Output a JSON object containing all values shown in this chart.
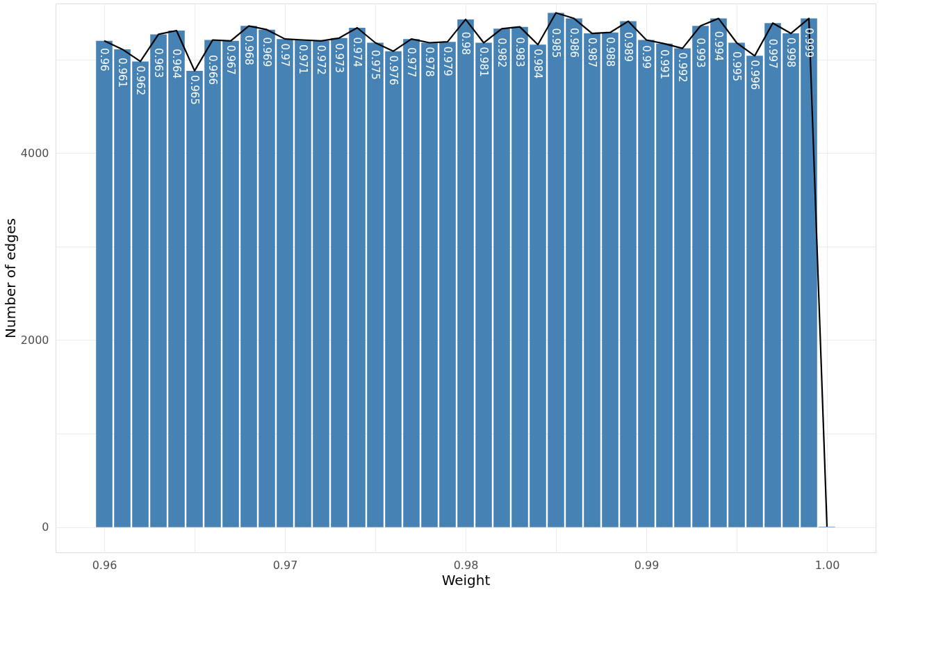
{
  "chart_data": {
    "type": "bar",
    "xlabel": "Weight",
    "ylabel": "Number of edges",
    "x": [
      0.96,
      0.961,
      0.962,
      0.963,
      0.964,
      0.965,
      0.966,
      0.967,
      0.968,
      0.969,
      0.97,
      0.971,
      0.972,
      0.973,
      0.974,
      0.975,
      0.976,
      0.977,
      0.978,
      0.979,
      0.98,
      0.981,
      0.982,
      0.983,
      0.984,
      0.985,
      0.986,
      0.987,
      0.988,
      0.989,
      0.99,
      0.991,
      0.992,
      0.993,
      0.994,
      0.995,
      0.996,
      0.997,
      0.998,
      0.999,
      1.0
    ],
    "series": [
      {
        "color": "#4682b4",
        "values": [
          5200,
          5110,
          4980,
          5270,
          5310,
          4880,
          5210,
          5200,
          5360,
          5320,
          5220,
          5210,
          5200,
          5230,
          5340,
          5180,
          5090,
          5220,
          5180,
          5190,
          5430,
          5180,
          5330,
          5350,
          5160,
          5500,
          5440,
          5280,
          5290,
          5410,
          5210,
          5170,
          5120,
          5360,
          5440,
          5180,
          5040,
          5390,
          5280,
          5440,
          5
        ]
      },
      {
        "type": "line",
        "color": "#000000",
        "values": [
          5200,
          5110,
          4980,
          5270,
          5310,
          4880,
          5210,
          5200,
          5360,
          5320,
          5220,
          5210,
          5200,
          5230,
          5340,
          5180,
          5090,
          5220,
          5180,
          5190,
          5430,
          5180,
          5330,
          5350,
          5160,
          5500,
          5440,
          5280,
          5290,
          5410,
          5210,
          5170,
          5120,
          5360,
          5440,
          5180,
          5040,
          5390,
          5280,
          5440,
          5
        ]
      }
    ],
    "annotations": [
      {
        "text": "0.96",
        "x": 0.96,
        "y": 5200
      },
      {
        "text": "0.961",
        "x": 0.961,
        "y": 5110
      },
      {
        "text": "0.962",
        "x": 0.962,
        "y": 4980
      },
      {
        "text": "0.963",
        "x": 0.963,
        "y": 5270
      },
      {
        "text": "0.964",
        "x": 0.964,
        "y": 5310
      },
      {
        "text": "0.965",
        "x": 0.965,
        "y": 4880
      },
      {
        "text": "0.966",
        "x": 0.966,
        "y": 5210
      },
      {
        "text": "0.967",
        "x": 0.967,
        "y": 5200
      },
      {
        "text": "0.968",
        "x": 0.968,
        "y": 5360
      },
      {
        "text": "0.969",
        "x": 0.969,
        "y": 5320
      },
      {
        "text": "0.97",
        "x": 0.97,
        "y": 5220
      },
      {
        "text": "0.971",
        "x": 0.971,
        "y": 5210
      },
      {
        "text": "0.972",
        "x": 0.972,
        "y": 5200
      },
      {
        "text": "0.973",
        "x": 0.973,
        "y": 5230
      },
      {
        "text": "0.974",
        "x": 0.974,
        "y": 5340
      },
      {
        "text": "0.975",
        "x": 0.975,
        "y": 5180
      },
      {
        "text": "0.976",
        "x": 0.976,
        "y": 5090
      },
      {
        "text": "0.977",
        "x": 0.977,
        "y": 5220
      },
      {
        "text": "0.978",
        "x": 0.978,
        "y": 5180
      },
      {
        "text": "0.979",
        "x": 0.979,
        "y": 5190
      },
      {
        "text": "0.98",
        "x": 0.98,
        "y": 5430
      },
      {
        "text": "0.981",
        "x": 0.981,
        "y": 5180
      },
      {
        "text": "0.982",
        "x": 0.982,
        "y": 5330
      },
      {
        "text": "0.983",
        "x": 0.983,
        "y": 5350
      },
      {
        "text": "0.984",
        "x": 0.984,
        "y": 5160
      },
      {
        "text": "0.985",
        "x": 0.985,
        "y": 5500
      },
      {
        "text": "0.986",
        "x": 0.986,
        "y": 5440
      },
      {
        "text": "0.987",
        "x": 0.987,
        "y": 5280
      },
      {
        "text": "0.988",
        "x": 0.988,
        "y": 5290
      },
      {
        "text": "0.989",
        "x": 0.989,
        "y": 5410
      },
      {
        "text": "0.99",
        "x": 0.99,
        "y": 5210
      },
      {
        "text": "0.991",
        "x": 0.991,
        "y": 5170
      },
      {
        "text": "0.992",
        "x": 0.992,
        "y": 5120
      },
      {
        "text": "0.993",
        "x": 0.993,
        "y": 5360
      },
      {
        "text": "0.994",
        "x": 0.994,
        "y": 5440
      },
      {
        "text": "0.995",
        "x": 0.995,
        "y": 5180
      },
      {
        "text": "0.996",
        "x": 0.996,
        "y": 5040
      },
      {
        "text": "0.997",
        "x": 0.997,
        "y": 5390
      },
      {
        "text": "0.998",
        "x": 0.998,
        "y": 5280
      },
      {
        "text": "0.999",
        "x": 0.999,
        "y": 5440
      }
    ],
    "xlim": [
      0.9575,
      1.0025
    ],
    "xticks": [
      0.96,
      {
        "value": 0.965,
        "label": null
      },
      0.97,
      {
        "value": 0.975,
        "label": null
      },
      0.98,
      {
        "value": 0.985,
        "label": null
      },
      0.99,
      {
        "value": 0.995,
        "label": null
      },
      {
        "value": 1.0,
        "label": "1.00"
      }
    ],
    "ylim": [
      -270,
      5600
    ],
    "yticks": [
      0,
      {
        "value": 1000,
        "label": null
      },
      2000,
      {
        "value": 3000,
        "label": null
      },
      4000,
      {
        "value": 5000,
        "label": null
      }
    ],
    "grid": true
  }
}
